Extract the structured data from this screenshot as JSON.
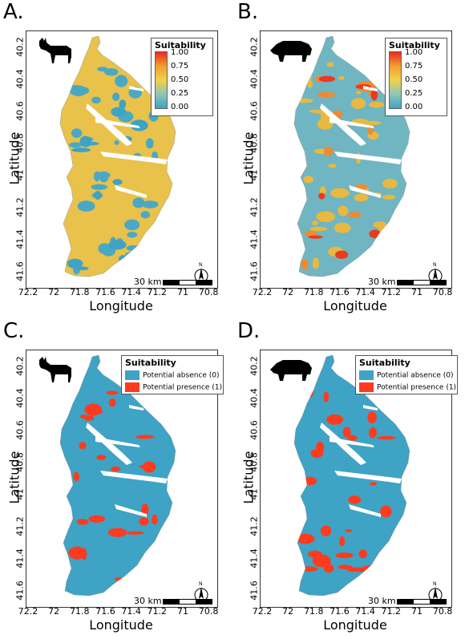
{
  "panels": [
    {
      "id": "A",
      "letter": "A.",
      "animal": "pudu-deer-icon",
      "legend_type": "continuous"
    },
    {
      "id": "B",
      "letter": "B.",
      "animal": "wild-boar-icon",
      "legend_type": "continuous"
    },
    {
      "id": "C",
      "letter": "C.",
      "animal": "pudu-deer-icon",
      "legend_type": "binary"
    },
    {
      "id": "D",
      "letter": "D.",
      "animal": "wild-boar-icon",
      "legend_type": "binary"
    }
  ],
  "axes": {
    "xlabel": "Longitude",
    "ylabel": "Latitude",
    "xticks": [
      "72.2",
      "72",
      "71.8",
      "71.6",
      "71.4",
      "71.2",
      "71",
      "70.8"
    ],
    "yticks": [
      "40.2",
      "40.4",
      "40.6",
      "40.8",
      "41",
      "41.2",
      "41.4",
      "41.6"
    ]
  },
  "legend_continuous": {
    "title": "Suitability",
    "labels": [
      "1.00",
      "0.75",
      "0.50",
      "0.25",
      "0.00"
    ],
    "colors": [
      "#ea2a1e",
      "#f0a030",
      "#f0d24a",
      "#8ec7b8",
      "#3ea3c4"
    ]
  },
  "legend_binary": {
    "title": "Suitability",
    "items": [
      {
        "label": "Potential absence (0)",
        "color": "#3ea3c4"
      },
      {
        "label": "Potential presence (1)",
        "color": "#ff3b1f"
      }
    ]
  },
  "scale_label": "30 km",
  "north_label": "N"
}
